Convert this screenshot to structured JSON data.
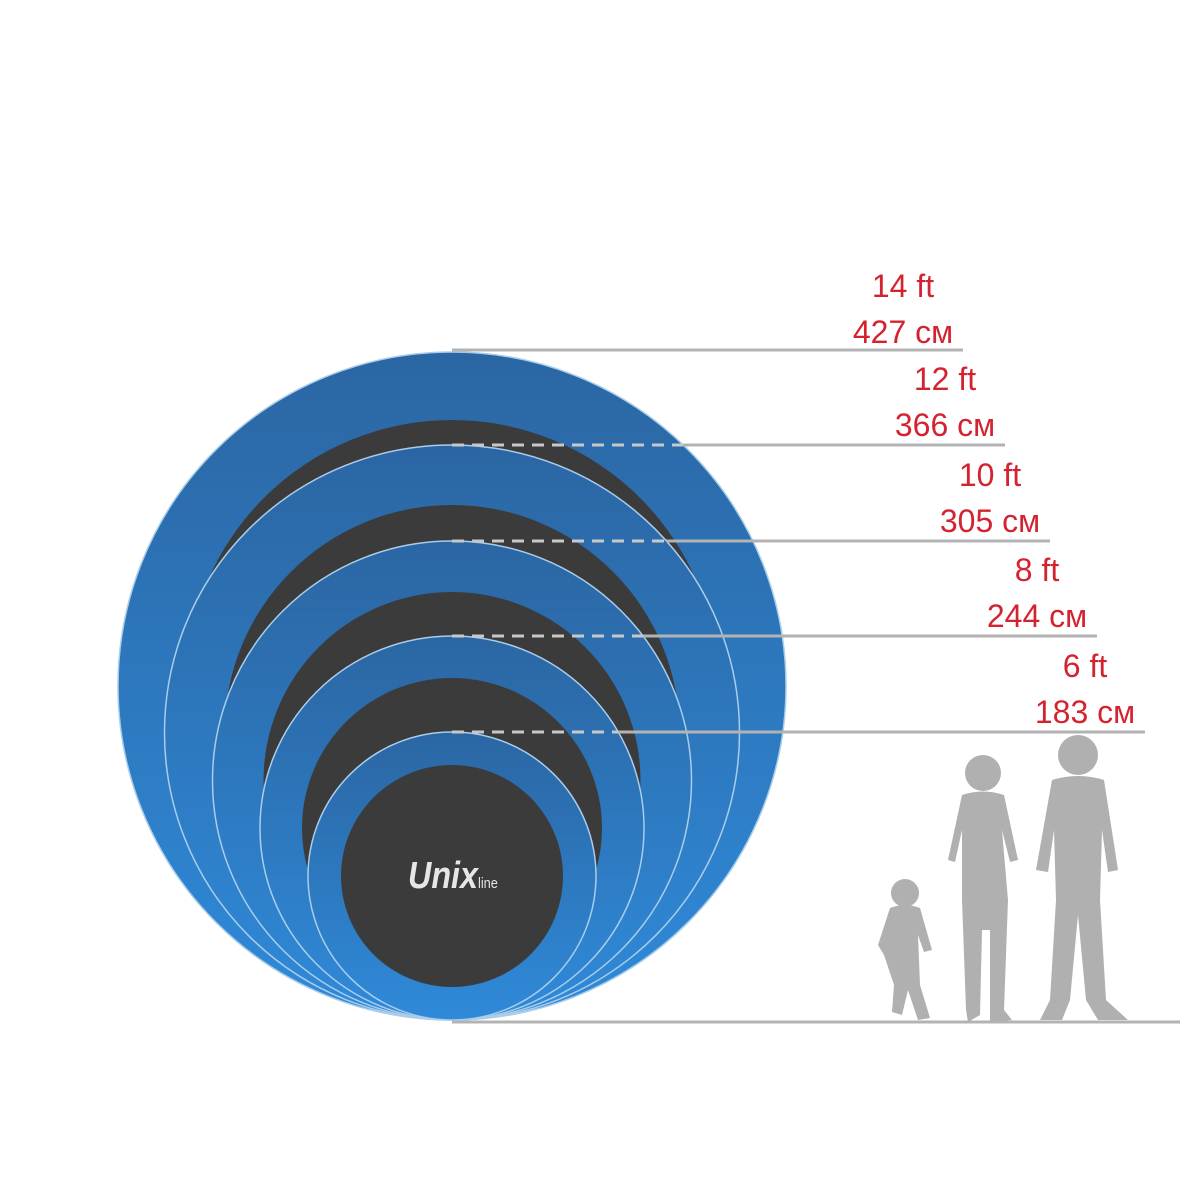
{
  "brand": {
    "logo_text": "Unix",
    "logo_suffix": "line"
  },
  "colors": {
    "label": "#d42330",
    "ring_top": "#2b66a3",
    "ring_bottom": "#2f8ad9",
    "mat": "#3b3b3b",
    "guide_line": "#b3b3b3",
    "silhouette": "#b0b0b0"
  },
  "sizes": [
    {
      "ft": "14 ft",
      "cm": "427 см"
    },
    {
      "ft": "12 ft",
      "cm": "366 см"
    },
    {
      "ft": "10 ft",
      "cm": "305 см"
    },
    {
      "ft": "8 ft",
      "cm": "244 см"
    },
    {
      "ft": "6 ft",
      "cm": "183 см"
    }
  ],
  "people": [
    "child",
    "woman",
    "man"
  ]
}
